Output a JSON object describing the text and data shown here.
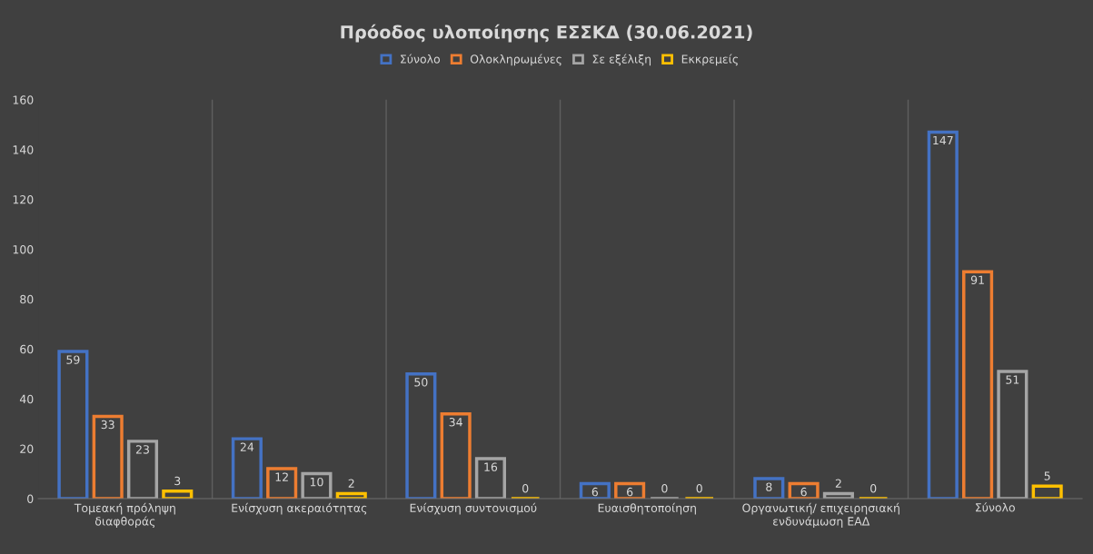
{
  "chart_data": {
    "type": "bar",
    "title": "Πρόοδος υλοποίησης ΕΣΣΚΔ (30.06.2021)",
    "categories": [
      "Τομεακή πρόληψη\nδιαφθοράς",
      "Ενίσχυση ακεραιότητας",
      "Ενίσχυση συντονισμού",
      "Ευαισθητοποίηση",
      "Οργανωτική/ επιχειρησιακή\nενδυνάμωση ΕΑΔ",
      "Σύνολο"
    ],
    "series": [
      {
        "name": "Σύνολο",
        "color": "#4472c4",
        "values": [
          59,
          24,
          50,
          6,
          8,
          147
        ]
      },
      {
        "name": "Ολοκληρωμένες",
        "color": "#ed7d31",
        "values": [
          33,
          12,
          34,
          6,
          6,
          91
        ]
      },
      {
        "name": "Σε εξέλιξη",
        "color": "#a5a5a5",
        "values": [
          23,
          10,
          16,
          0,
          2,
          51
        ]
      },
      {
        "name": "Εκκρεμείς",
        "color": "#ffc000",
        "values": [
          3,
          2,
          0,
          0,
          0,
          5
        ]
      }
    ],
    "ylim": [
      0,
      160
    ],
    "yticks": [
      0,
      20,
      40,
      60,
      80,
      100,
      120,
      140,
      160
    ],
    "grid": "x",
    "legend": "top",
    "data_labels": true
  }
}
